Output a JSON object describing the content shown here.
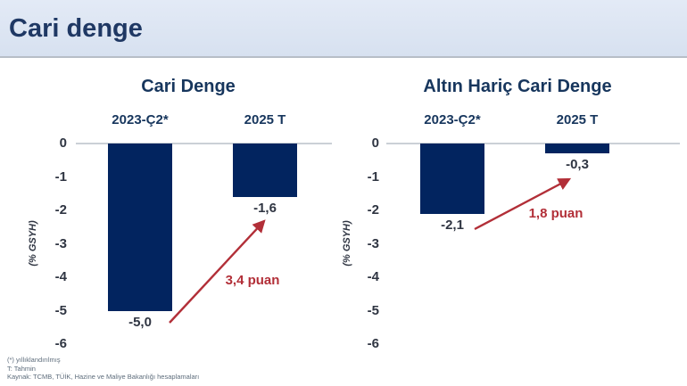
{
  "header": {
    "title": "Cari denge"
  },
  "colors": {
    "bar": "#02245f",
    "accent_red": "#b22f38",
    "header_bg": "#dbe4f1",
    "header_text": "#1f3864",
    "navy": "#17365d",
    "zero_line": "#cbd0d6"
  },
  "chart_data": [
    {
      "type": "bar",
      "title": "Cari Denge",
      "categories": [
        "2023-Ç2*",
        "2025 T"
      ],
      "values": [
        -5.0,
        -1.6
      ],
      "value_labels": [
        "-5,0",
        "-1,6"
      ],
      "ylabel": "(% GSYH)",
      "ylim": [
        -6,
        0
      ],
      "yticks": [
        0,
        -1,
        -2,
        -3,
        -4,
        -5,
        -6
      ],
      "grid": false,
      "annotation": {
        "label": "3,4 puan"
      }
    },
    {
      "type": "bar",
      "title": "Altın Hariç Cari Denge",
      "categories": [
        "2023-Ç2*",
        "2025 T"
      ],
      "values": [
        -2.1,
        -0.3
      ],
      "value_labels": [
        "-2,1",
        "-0,3"
      ],
      "ylabel": "(% GSYH)",
      "ylim": [
        -6,
        0
      ],
      "yticks": [
        0,
        -1,
        -2,
        -3,
        -4,
        -5,
        -6
      ],
      "grid": false,
      "annotation": {
        "label": "1,8 puan"
      }
    }
  ],
  "footer": {
    "lines": [
      "(*) yıllıklandırılmış",
      "T: Tahmin",
      "Kaynak: TCMB, TÜİK, Hazine ve Maliye Bakanlığı hesaplamaları"
    ]
  }
}
